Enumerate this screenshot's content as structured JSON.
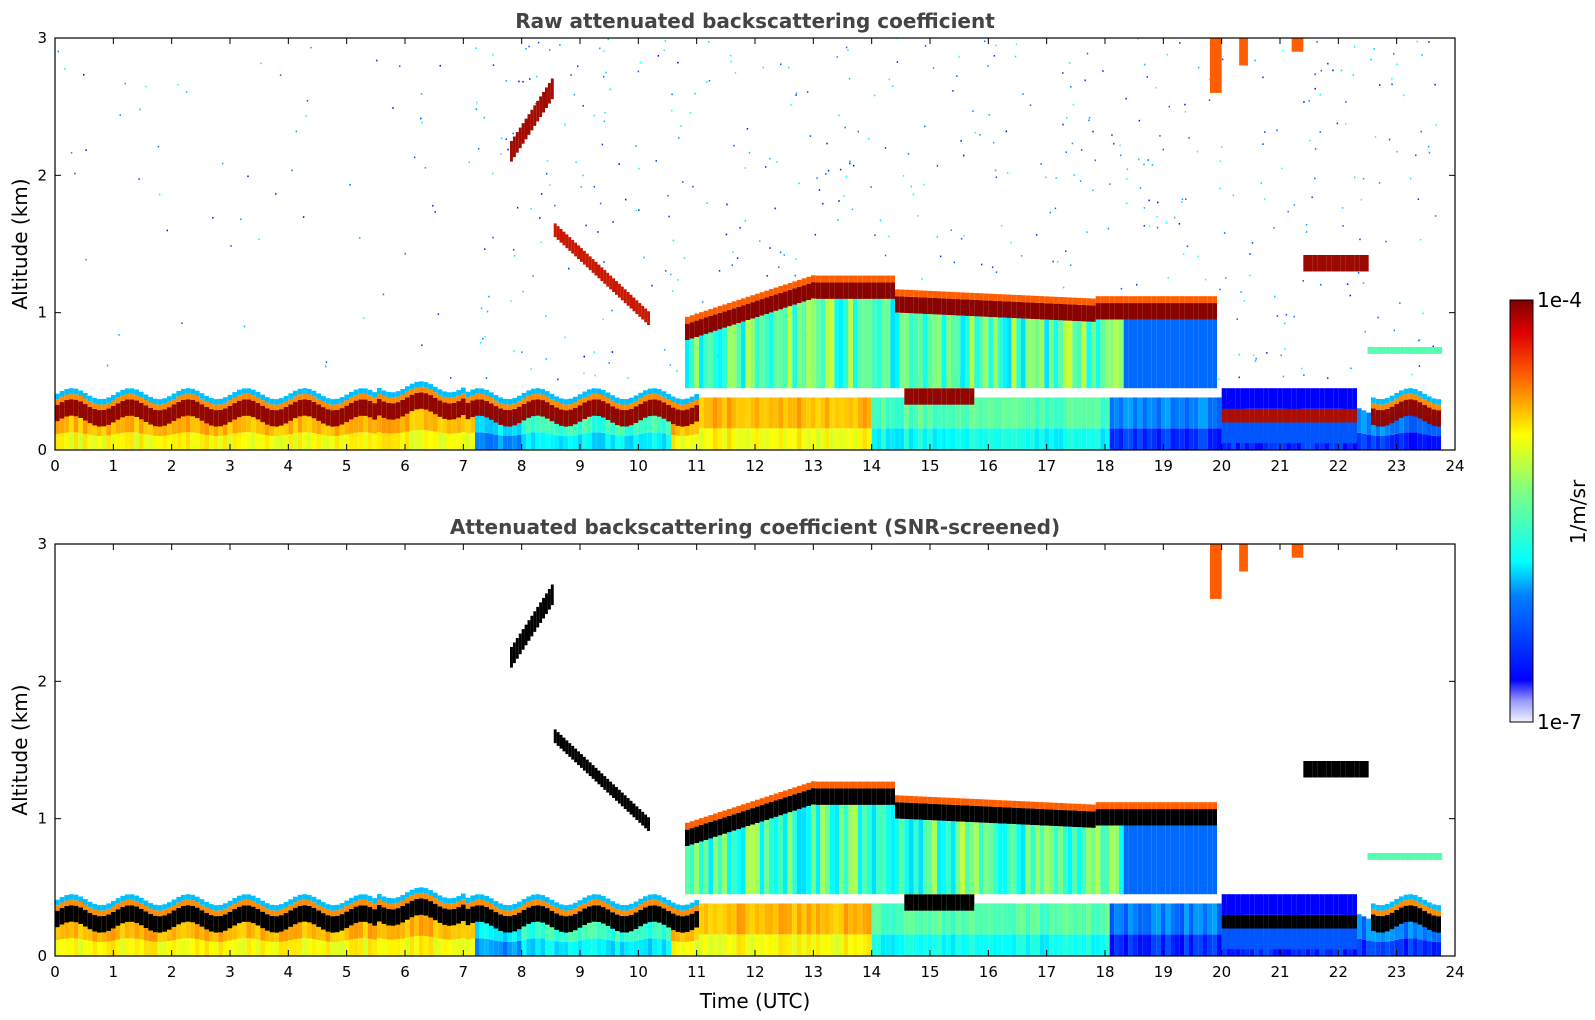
{
  "chart_data": [
    {
      "type": "heatmap",
      "title": "Raw attenuated backscattering coefficient",
      "xlabel": "",
      "ylabel": "Altitude (km)",
      "xlim": [
        0,
        24
      ],
      "ylim": [
        0,
        3
      ],
      "x_ticks": [
        "0",
        "1",
        "2",
        "3",
        "4",
        "5",
        "6",
        "7",
        "8",
        "9",
        "10",
        "11",
        "12",
        "13",
        "14",
        "15",
        "16",
        "17",
        "18",
        "19",
        "20",
        "21",
        "22",
        "23",
        "24"
      ],
      "y_ticks": [
        "0",
        "1",
        "2",
        "3"
      ],
      "data_end_time": 23.7,
      "features": [
        {
          "name": "boundary layer top",
          "time_range": [
            0,
            11
          ],
          "altitude_km": [
            0.25,
            0.45
          ]
        },
        {
          "name": "elevated layer",
          "time_range": [
            7.8,
            8.6
          ],
          "altitude_km": [
            2.1,
            2.65
          ]
        },
        {
          "name": "descending layer",
          "time_range": [
            8.5,
            10.2
          ],
          "altitude_km": [
            0.85,
            1.6
          ]
        },
        {
          "name": "cloud base",
          "time_range": [
            10.8,
            19.8
          ],
          "altitude_km": [
            0.9,
            1.3
          ]
        },
        {
          "name": "low clouds",
          "time_range": [
            20,
            23.7
          ],
          "altitude_km": [
            0.2,
            1.5
          ]
        },
        {
          "name": "high cloud streaks",
          "time_range": [
            19.8,
            21.4
          ],
          "altitude_km": [
            2.6,
            3.0
          ]
        }
      ]
    },
    {
      "type": "heatmap",
      "title": "Attenuated backscattering coefficient (SNR-screened)",
      "xlabel": "Time (UTC)",
      "ylabel": "Altitude (km)",
      "xlim": [
        0,
        24
      ],
      "ylim": [
        0,
        3
      ],
      "x_ticks": [
        "0",
        "1",
        "2",
        "3",
        "4",
        "5",
        "6",
        "7",
        "8",
        "9",
        "10",
        "11",
        "12",
        "13",
        "14",
        "15",
        "16",
        "17",
        "18",
        "19",
        "20",
        "21",
        "22",
        "23",
        "24"
      ],
      "y_ticks": [
        "0",
        "1",
        "2",
        "3"
      ],
      "data_end_time": 23.7,
      "screened": true
    }
  ],
  "colorbar": {
    "label": "1/m/sr",
    "max_label": "1e-4",
    "min_label": "1e-7",
    "colormap": "jet"
  },
  "colors": {
    "axis": "#000000",
    "title": "#444444",
    "screen_mask": "#000000"
  }
}
